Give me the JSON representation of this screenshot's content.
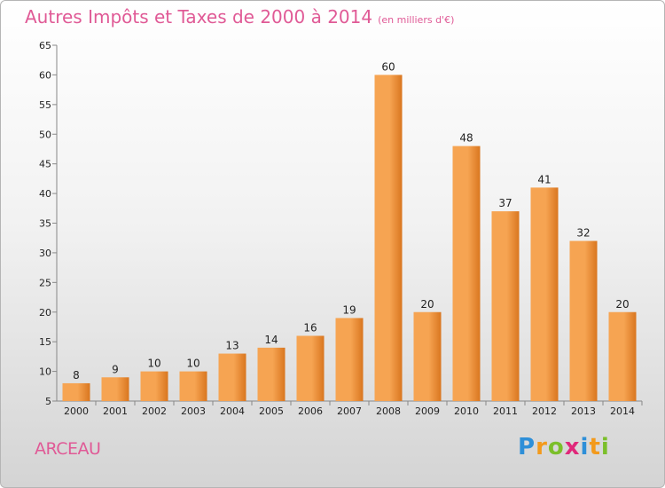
{
  "title": "Autres Impôts et Taxes de 2000 à 2014",
  "title_unit": "(en milliers d'€)",
  "place": "ARCEAU",
  "logo": {
    "letters": [
      "P",
      "r",
      "o",
      "x",
      "i",
      "t",
      "i"
    ],
    "colors": [
      "#2e8fd8",
      "#f39a1c",
      "#7bbf2a",
      "#e0287a",
      "#2e8fd8",
      "#f39a1c",
      "#7bbf2a"
    ]
  },
  "colors": {
    "bar_light": "#f6a452",
    "bar_dark": "#d9761f",
    "title": "#e05a96"
  },
  "chart_data": {
    "type": "bar",
    "title": "Autres Impôts et Taxes de 2000 à 2014",
    "categories": [
      "2000",
      "2001",
      "2002",
      "2003",
      "2004",
      "2005",
      "2006",
      "2007",
      "2008",
      "2009",
      "2010",
      "2011",
      "2012",
      "2013",
      "2014"
    ],
    "values": [
      8,
      9,
      10,
      10,
      13,
      14,
      16,
      19,
      60,
      20,
      48,
      37,
      41,
      32,
      20
    ],
    "xlabel": "",
    "ylabel": "",
    "ylim": [
      5,
      65
    ],
    "yticks": [
      5,
      10,
      15,
      20,
      25,
      30,
      35,
      40,
      45,
      50,
      55,
      60,
      65
    ],
    "grid": false,
    "legend": "none"
  }
}
